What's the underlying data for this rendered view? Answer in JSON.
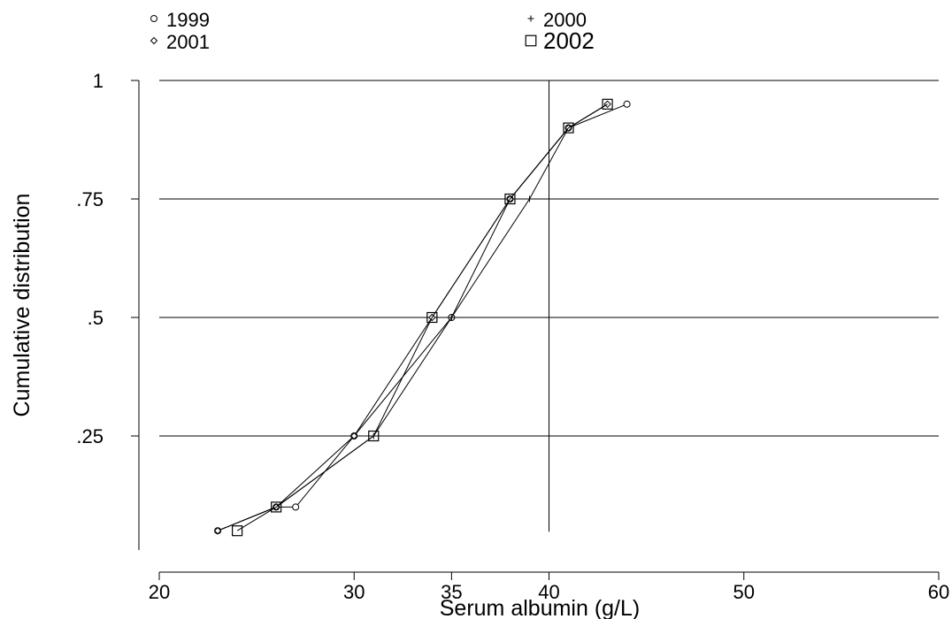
{
  "chart_data": {
    "type": "line",
    "xlabel": "Serum albumin (g/L)",
    "ylabel": "Cumulative distribution",
    "xlim": [
      20,
      60
    ],
    "ylim": [
      0,
      1
    ],
    "x_ticks": [
      20,
      30,
      35,
      40,
      50,
      60
    ],
    "x_tick_labels": [
      "20",
      "30",
      "35",
      "40",
      "50",
      "60"
    ],
    "y_ticks": [
      0.25,
      0.5,
      0.75,
      1
    ],
    "y_tick_labels": [
      ".25",
      ".5",
      ".75",
      "1"
    ],
    "grid": "horizontal",
    "reference_line_x": 40,
    "legend_position": "top",
    "series": [
      {
        "name": "1999",
        "marker": "circle",
        "x": [
          23,
          26,
          27,
          30,
          35,
          38,
          41,
          44
        ],
        "y": [
          0.05,
          0.1,
          0.1,
          0.25,
          0.5,
          0.75,
          0.9,
          0.95
        ]
      },
      {
        "name": "2000",
        "marker": "plus",
        "x": [
          23,
          26,
          31,
          35,
          39,
          41,
          43
        ],
        "y": [
          0.05,
          0.1,
          0.25,
          0.5,
          0.75,
          0.9,
          0.95
        ]
      },
      {
        "name": "2001",
        "marker": "diamond",
        "x": [
          23,
          26,
          30,
          34,
          38,
          41,
          43
        ],
        "y": [
          0.05,
          0.1,
          0.25,
          0.5,
          0.75,
          0.9,
          0.95
        ]
      },
      {
        "name": "2002",
        "marker": "square",
        "x": [
          24,
          26,
          31,
          34,
          38,
          41,
          43
        ],
        "y": [
          0.05,
          0.1,
          0.25,
          0.5,
          0.75,
          0.9,
          0.95
        ]
      }
    ]
  }
}
